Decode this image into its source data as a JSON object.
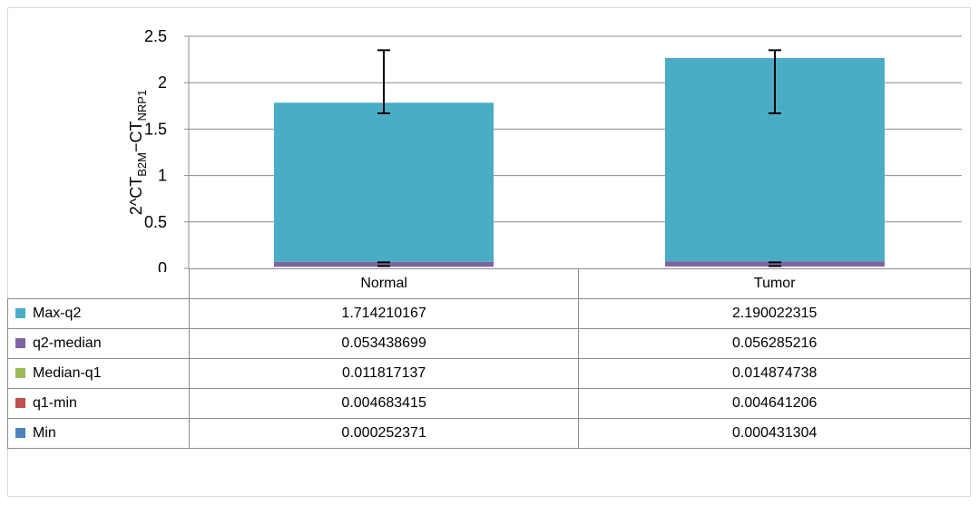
{
  "chart_data": {
    "type": "bar",
    "stacked": true,
    "categories": [
      "Normal",
      "Tumor"
    ],
    "ylabel": {
      "prefix": "2^CT",
      "sub1": "B2M",
      "mid": "−CT",
      "sub2": "NRP1"
    },
    "ylim": [
      0,
      2.5
    ],
    "yticks": [
      "0",
      "0.5",
      "1",
      "1.5",
      "2",
      "2.5"
    ],
    "grid": true,
    "series": [
      {
        "name": "Min",
        "color": "#4f81bd",
        "values": [
          0.000252371,
          0.000431304
        ],
        "labels": [
          "0.000252371",
          "0.000431304"
        ],
        "visible": false
      },
      {
        "name": "q1-min",
        "color": "#c0504d",
        "values": [
          0.004683415,
          0.004641206
        ],
        "labels": [
          "0.004683415",
          "0.004641206"
        ],
        "visible": false
      },
      {
        "name": "Median-q1",
        "color": "#9bbb59",
        "values": [
          0.011817137,
          0.014874738
        ],
        "labels": [
          "0.011817137",
          "0.014874738"
        ],
        "visible": false
      },
      {
        "name": "q2-median",
        "color": "#8064a2",
        "values": [
          0.053438699,
          0.056285216
        ],
        "labels": [
          "0.053438699",
          "0.056285216"
        ],
        "visible": true
      },
      {
        "name": "Max-q2",
        "color": "#4bacc6",
        "values": [
          1.714210167,
          2.190022315
        ],
        "labels": [
          "1.714210167",
          "2.190022315"
        ],
        "visible": true
      }
    ],
    "table_order": [
      "Max-q2",
      "q2-median",
      "Median-q1",
      "q1-min",
      "Min"
    ],
    "error_bars": [
      {
        "category": "Normal",
        "low": 1.67,
        "high": 2.35
      },
      {
        "category": "Tumor",
        "low": 1.67,
        "high": 2.35
      }
    ]
  }
}
